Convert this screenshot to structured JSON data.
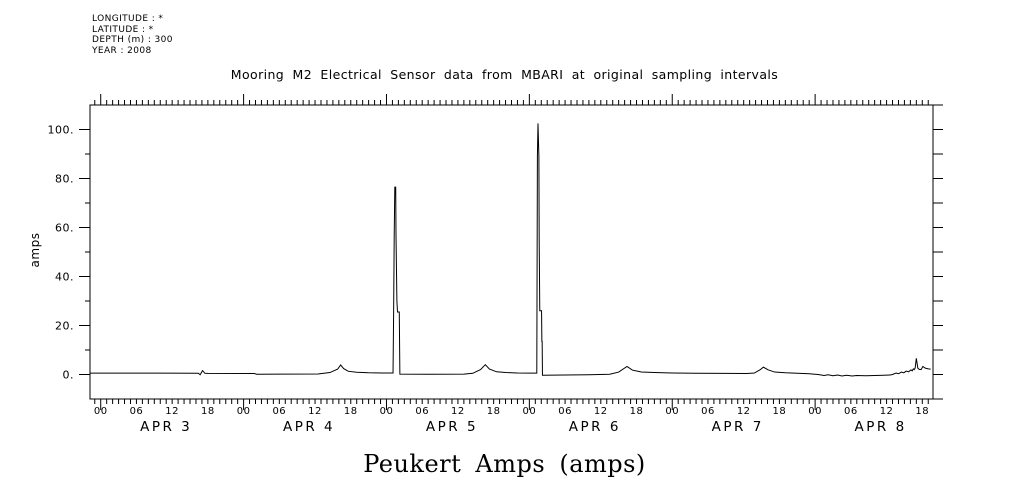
{
  "info": {
    "lines": [
      "LONGITUDE : *",
      "LATITUDE : *",
      "DEPTH (m) : 300",
      "YEAR : 2008"
    ]
  },
  "colors": {
    "foreground": "#000000",
    "background": "#ffffff"
  },
  "chart_data": {
    "type": "line",
    "title": "Mooring M2 Electrical Sensor data from MBARI at original sampling intervals",
    "xlabel": "Peukert Amps (amps)",
    "ylabel": "amps",
    "grid": false,
    "legend": null,
    "ylim": [
      -10,
      110
    ],
    "y_major_ticks": [
      0,
      20,
      40,
      60,
      80,
      100
    ],
    "y_major_labels": [
      "0.",
      "20.",
      "40.",
      "60.",
      "80.",
      "100."
    ],
    "y_minor_ticks": [
      10,
      30,
      50,
      70,
      90
    ],
    "y_right_tick_step": 10,
    "x_start_hour": -1.8,
    "x_end_hour": 139.8,
    "x_hour_minor_step": 1,
    "x_hour_label_step": 6,
    "x_last_labeled_hour": 138,
    "hour_labels_cycle": [
      "00",
      "06",
      "12",
      "18"
    ],
    "day_labels": [
      "APR  3",
      "APR  4",
      "APR  5",
      "APR  6",
      "APR  7",
      "APR  8"
    ],
    "day_label_center_hour": 11,
    "series": [
      {
        "name": "Peukert Amps",
        "points": [
          [
            -1.8,
            0.55
          ],
          [
            10,
            0.55
          ],
          [
            16.4,
            0.5
          ],
          [
            16.7,
            -0.1
          ],
          [
            17.1,
            1.6
          ],
          [
            17.5,
            0.5
          ],
          [
            18,
            0.45
          ],
          [
            25.8,
            0.4
          ],
          [
            26.2,
            0.1
          ],
          [
            30,
            0.15
          ],
          [
            36.5,
            0.2
          ],
          [
            38.5,
            0.8
          ],
          [
            39.8,
            2.2
          ],
          [
            40.3,
            3.9
          ],
          [
            40.8,
            2.4
          ],
          [
            41.6,
            1.3
          ],
          [
            43,
            0.9
          ],
          [
            45,
            0.7
          ],
          [
            48,
            0.6
          ],
          [
            49.1,
            0.6
          ],
          [
            49.2,
            25
          ],
          [
            49.3,
            57
          ],
          [
            49.4,
            76.5
          ],
          [
            49.55,
            76.5
          ],
          [
            49.6,
            57
          ],
          [
            49.75,
            30
          ],
          [
            49.85,
            25.5
          ],
          [
            50.15,
            25.5
          ],
          [
            50.25,
            0.15
          ],
          [
            55,
            0.1
          ],
          [
            61,
            0.15
          ],
          [
            62.5,
            0.5
          ],
          [
            63.8,
            2.0
          ],
          [
            64.6,
            4.0
          ],
          [
            65.3,
            2.2
          ],
          [
            66.5,
            1.1
          ],
          [
            68,
            0.8
          ],
          [
            70,
            0.6
          ],
          [
            72,
            0.55
          ],
          [
            73.25,
            0.55
          ],
          [
            73.35,
            89
          ],
          [
            73.45,
            102.5
          ],
          [
            73.6,
            89
          ],
          [
            73.65,
            55
          ],
          [
            73.75,
            26
          ],
          [
            74.05,
            26
          ],
          [
            74.1,
            13.5
          ],
          [
            74.15,
            13.5
          ],
          [
            74.2,
            -0.3
          ],
          [
            78,
            -0.2
          ],
          [
            82,
            -0.1
          ],
          [
            85.5,
            0.1
          ],
          [
            87,
            1.0
          ],
          [
            88.4,
            3.3
          ],
          [
            89.3,
            1.8
          ],
          [
            90.8,
            1.0
          ],
          [
            93,
            0.8
          ],
          [
            96,
            0.6
          ],
          [
            100,
            0.5
          ],
          [
            105,
            0.45
          ],
          [
            108.5,
            0.4
          ],
          [
            109.8,
            0.6
          ],
          [
            110.8,
            2.0
          ],
          [
            111.3,
            3.0
          ],
          [
            112.1,
            1.9
          ],
          [
            113.2,
            1.0
          ],
          [
            115,
            0.7
          ],
          [
            117,
            0.5
          ],
          [
            119,
            0.3
          ],
          [
            120.5,
            0.0
          ],
          [
            121.5,
            -0.4
          ],
          [
            122.2,
            -0.1
          ],
          [
            123,
            -0.5
          ],
          [
            123.8,
            -0.2
          ],
          [
            124.5,
            -0.6
          ],
          [
            125.3,
            -0.3
          ],
          [
            126.2,
            -0.6
          ],
          [
            127,
            -0.4
          ],
          [
            128.5,
            -0.5
          ],
          [
            130,
            -0.4
          ],
          [
            131.5,
            -0.3
          ],
          [
            132.6,
            -0.2
          ],
          [
            133.0,
            0.0
          ],
          [
            133.6,
            0.6
          ],
          [
            134.0,
            0.3
          ],
          [
            134.5,
            1.0
          ],
          [
            134.9,
            0.7
          ],
          [
            135.3,
            1.4
          ],
          [
            135.7,
            1.1
          ],
          [
            136.1,
            1.9
          ],
          [
            136.3,
            1.5
          ],
          [
            136.5,
            2.3
          ],
          [
            136.65,
            2.0
          ],
          [
            136.8,
            2.6
          ],
          [
            137.0,
            6.6
          ],
          [
            137.25,
            2.6
          ],
          [
            137.5,
            2.1
          ],
          [
            137.8,
            2.0
          ],
          [
            138.1,
            3.3
          ],
          [
            138.5,
            2.6
          ],
          [
            139.0,
            2.3
          ],
          [
            139.4,
            2.2
          ]
        ]
      }
    ]
  }
}
